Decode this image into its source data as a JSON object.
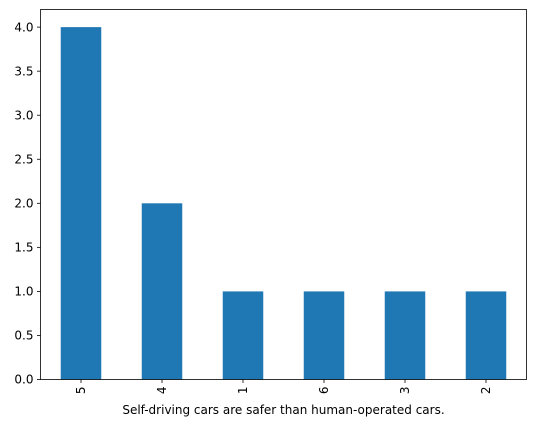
{
  "chart_data": {
    "type": "bar",
    "categories": [
      "5",
      "4",
      "1",
      "6",
      "3",
      "2"
    ],
    "values": [
      4,
      2,
      1,
      1,
      1,
      1
    ],
    "title": "",
    "xlabel": "Self-driving cars are safer than human-operated cars.",
    "ylabel": "",
    "ylim": [
      0,
      4.2
    ],
    "yticks": [
      0.0,
      0.5,
      1.0,
      1.5,
      2.0,
      2.5,
      3.0,
      3.5,
      4.0
    ],
    "ytick_labels": [
      "0.0",
      "0.5",
      "1.0",
      "1.5",
      "2.0",
      "2.5",
      "3.0",
      "3.5",
      "4.0"
    ],
    "bar_color": "#1f77b4",
    "grid": false,
    "legend": false
  }
}
